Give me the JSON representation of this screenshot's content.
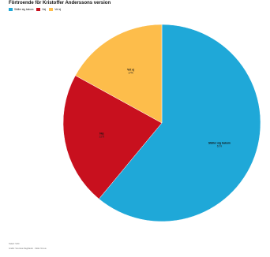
{
  "chart_data": {
    "type": "pie",
    "title": "Förtroende för Kristoffer Anderssons version",
    "labels": [
      "Ställer sig bakom",
      "Nej",
      "Vet ej"
    ],
    "values": [
      61,
      22,
      17
    ],
    "value_labels": [
      "61%",
      "22%",
      "17%"
    ],
    "colors": [
      "#1fa8d8",
      "#c8101e",
      "#fdbd4b"
    ],
    "start_angle_deg": 0,
    "direction": "clockwise",
    "legend_position": "top-left"
  },
  "notes": {
    "source": "Tabell: SVD",
    "credit": "Grafik: Svenska Dagbladet · Källa: Novus"
  }
}
